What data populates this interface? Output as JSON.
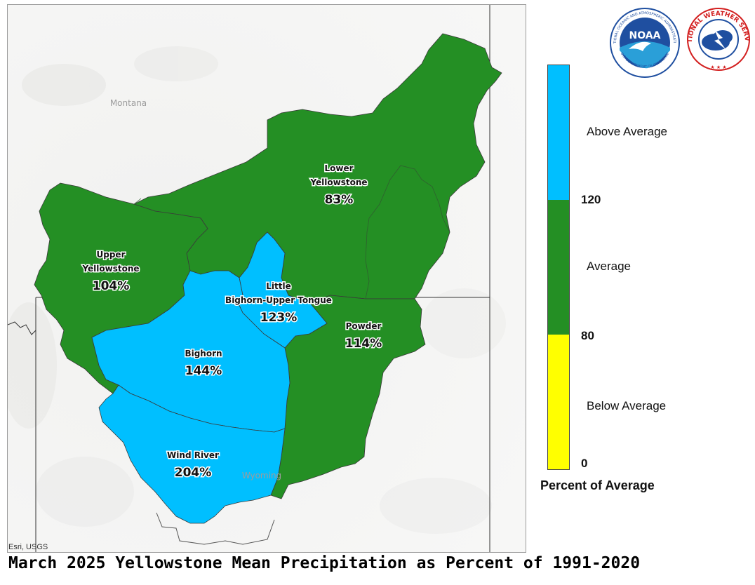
{
  "title": "March 2025 Yellowstone Mean Precipitation as Percent of 1991-2020",
  "map": {
    "state_labels": [
      "Montana",
      "Wyoming"
    ],
    "attribution": "Esri, USGS",
    "basins": [
      {
        "name": "Lower Yellowstone",
        "name_lines": [
          "Lower",
          "Yellowstone"
        ],
        "percent": "83%",
        "category": "Average"
      },
      {
        "name": "Upper Yellowstone",
        "name_lines": [
          "Upper",
          "Yellowstone"
        ],
        "percent": "104%",
        "category": "Average"
      },
      {
        "name": "Little Bighorn-Upper Tongue",
        "name_lines": [
          "Little",
          "Bighorn-Upper Tongue"
        ],
        "percent": "123%",
        "category": "Above Average"
      },
      {
        "name": "Powder",
        "name_lines": [
          "Powder"
        ],
        "percent": "114%",
        "category": "Average"
      },
      {
        "name": "Bighorn",
        "name_lines": [
          "Bighorn"
        ],
        "percent": "144%",
        "category": "Above Average"
      },
      {
        "name": "Wind River",
        "name_lines": [
          "Wind River"
        ],
        "percent": "204%",
        "category": "Above Average"
      }
    ]
  },
  "legend": {
    "title": "Percent of Average",
    "categories": [
      {
        "label": "Above Average",
        "color": "#00bfff",
        "min": 120,
        "max": null
      },
      {
        "label": "Average",
        "color": "#248f24",
        "min": 80,
        "max": 120
      },
      {
        "label": "Below Average",
        "color": "#ffff00",
        "min": 0,
        "max": 80
      }
    ],
    "ticks": [
      "120",
      "80",
      "0"
    ]
  },
  "logos": [
    {
      "name": "noaa-logo",
      "text": "NOAA",
      "ring_text": "NATIONAL OCEANIC AND ATMOSPHERIC ADMINISTRATION",
      "bottom_text": "U.S. DEPARTMENT OF COMMERCE"
    },
    {
      "name": "nws-logo",
      "ring_text": "NATIONAL WEATHER SERVICE"
    }
  ],
  "colors": {
    "above_average": "#00bfff",
    "average": "#248f24",
    "below_average": "#ffff00",
    "noaa_blue": "#1f4fa0",
    "nws_red": "#d32020"
  }
}
